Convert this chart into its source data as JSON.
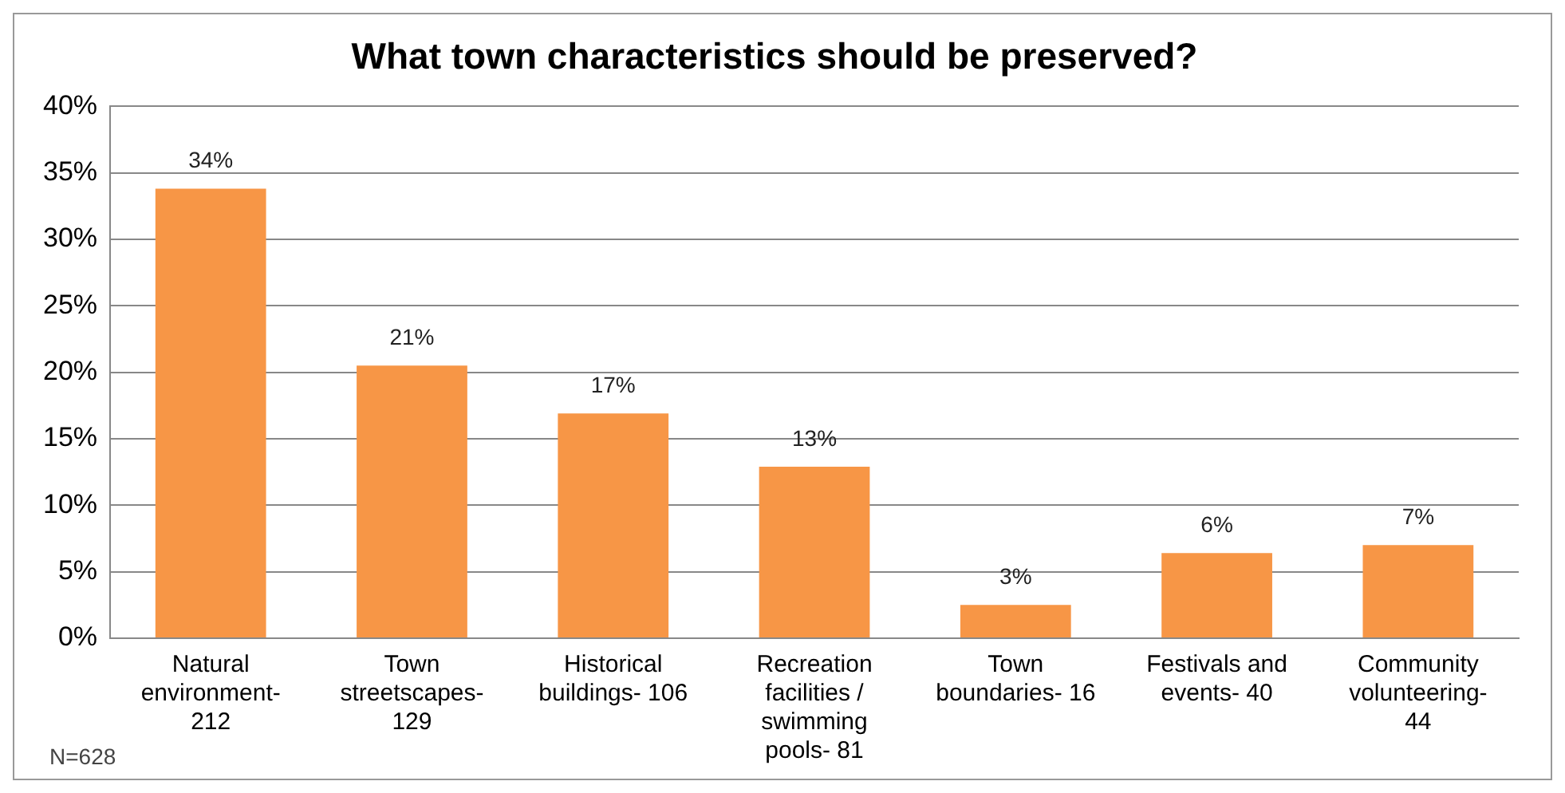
{
  "chart_data": {
    "type": "bar",
    "title": "What town characteristics should be preserved?",
    "categories": [
      "Natural environment- 212",
      "Town streetscapes- 129",
      "Historical buildings- 106",
      "Recreation facilities / swimming pools- 81",
      "Town boundaries- 16",
      "Festivals and events- 40",
      "Community volunteering- 44"
    ],
    "values": [
      33.8,
      20.5,
      16.9,
      12.9,
      2.5,
      6.4,
      7.0
    ],
    "value_labels": [
      "34%",
      "21%",
      "17%",
      "13%",
      "3%",
      "6%",
      "7%"
    ],
    "color": "#f79646",
    "ylim": [
      0,
      40
    ],
    "yticks": [
      {
        "value": 0,
        "label": "0%"
      },
      {
        "value": 5,
        "label": "5%"
      },
      {
        "value": 10,
        "label": "10%"
      },
      {
        "value": 15,
        "label": "15%"
      },
      {
        "value": 20,
        "label": "20%"
      },
      {
        "value": 25,
        "label": "25%"
      },
      {
        "value": 30,
        "label": "30%"
      },
      {
        "value": 35,
        "label": "35%"
      },
      {
        "value": 40,
        "label": "40%"
      }
    ],
    "grid": "y",
    "legend": false,
    "annotations": [
      "N=628"
    ]
  }
}
